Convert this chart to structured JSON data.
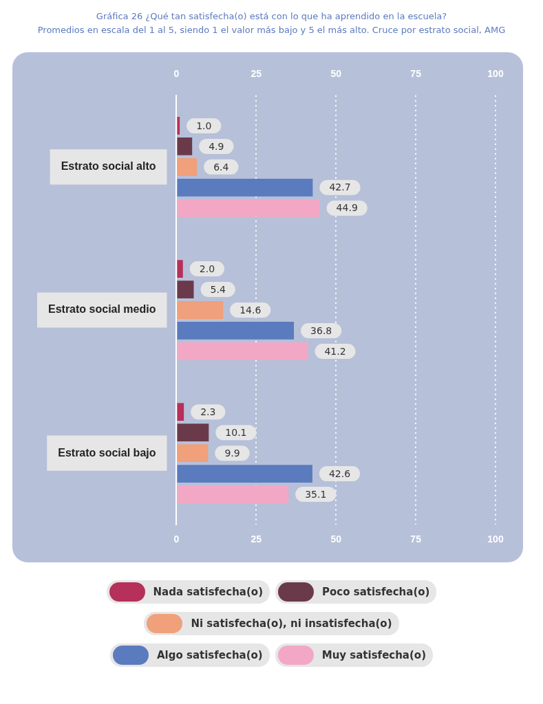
{
  "chart_data": {
    "type": "bar",
    "orientation": "horizontal",
    "title": "Gráfica 26 ¿Qué tan satisfecha(o) está con lo que ha aprendido en la escuela?",
    "subtitle": "Promedios en escala del 1 al 5, siendo 1 el valor más bajo y 5 el más alto. Cruce por estrato social, AMG",
    "categories": [
      "Estrato social alto",
      "Estrato social medio",
      "Estrato social bajo"
    ],
    "series": [
      {
        "name": "Nada satisfecha(o)",
        "color": "#b5305a",
        "values": [
          1.0,
          2.0,
          2.3
        ],
        "value_labels": [
          "1.0",
          "2.0",
          "2.3"
        ]
      },
      {
        "name": "Poco satisfecha(o)",
        "color": "#6b3a4a",
        "values": [
          4.9,
          5.4,
          10.1
        ],
        "value_labels": [
          "4.9",
          "5.4",
          "10.1"
        ]
      },
      {
        "name": "Ni satisfecha(o), ni insatisfecha(o)",
        "color": "#f0a07a",
        "values": [
          6.4,
          14.6,
          9.9
        ],
        "value_labels": [
          "6.4",
          "14.6",
          "9.9"
        ]
      },
      {
        "name": "Algo satisfecha(o)",
        "color": "#5b7bbf",
        "values": [
          42.7,
          36.8,
          42.6
        ],
        "value_labels": [
          "42.7",
          "36.8",
          "42.6"
        ]
      },
      {
        "name": "Muy satisfecha(o)",
        "color": "#f2a8c4",
        "values": [
          44.9,
          41.2,
          35.1
        ],
        "value_labels": [
          "44.9",
          "41.2",
          "35.1"
        ]
      }
    ],
    "xlim": [
      0,
      100
    ],
    "xticks": [
      0,
      25,
      50,
      75,
      100
    ],
    "x2lim": [
      0,
      100
    ],
    "x2ticks": [
      0,
      25,
      50,
      75,
      100
    ],
    "grid": "x",
    "legend": "bottom"
  }
}
